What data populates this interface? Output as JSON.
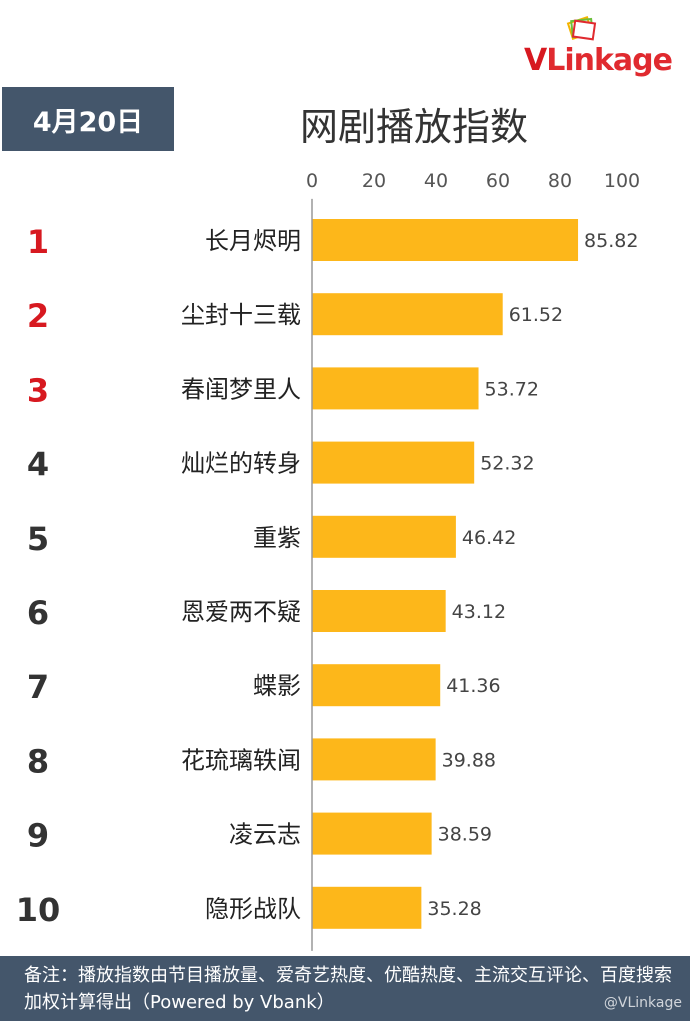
{
  "brand": {
    "logo_text_v": "V",
    "logo_text_rest": "Linkage",
    "accent": "#e02a2f"
  },
  "header": {
    "date_label": "4月20日",
    "title": "网剧播放指数"
  },
  "chart_data": {
    "type": "bar",
    "orientation": "horizontal",
    "title": "网剧播放指数",
    "ranks": [
      "1",
      "2",
      "3",
      "4",
      "5",
      "6",
      "7",
      "8",
      "9",
      "10"
    ],
    "categories": [
      "长月烬明",
      "尘封十三载",
      "春闺梦里人",
      "灿烂的转身",
      "重紫",
      "恩爱两不疑",
      "蝶影",
      "花琉璃轶闻",
      "凌云志",
      "隐形战队"
    ],
    "values": [
      85.82,
      61.52,
      53.72,
      52.32,
      46.42,
      43.12,
      41.36,
      39.88,
      38.59,
      35.28
    ],
    "value_labels": [
      "85.82",
      "61.52",
      "53.72",
      "52.32",
      "46.42",
      "43.12",
      "41.36",
      "39.88",
      "38.59",
      "35.28"
    ],
    "xlim": [
      0,
      100
    ],
    "ticks": [
      0,
      20,
      40,
      60,
      80,
      100
    ],
    "tick_labels": [
      "0",
      "20",
      "40",
      "60",
      "80",
      "100"
    ],
    "bar_color": "#fdb71a",
    "top_rank_color": "#d71920",
    "rank_color": "#333333",
    "grid": false,
    "legend": "none"
  },
  "footer": {
    "note": "备注：播放指数由节目播放量、爱奇艺热度、优酷热度、主流交互评论、百度搜索加权计算得出（Powered by Vbank）",
    "watermark": "@VLinkage"
  }
}
